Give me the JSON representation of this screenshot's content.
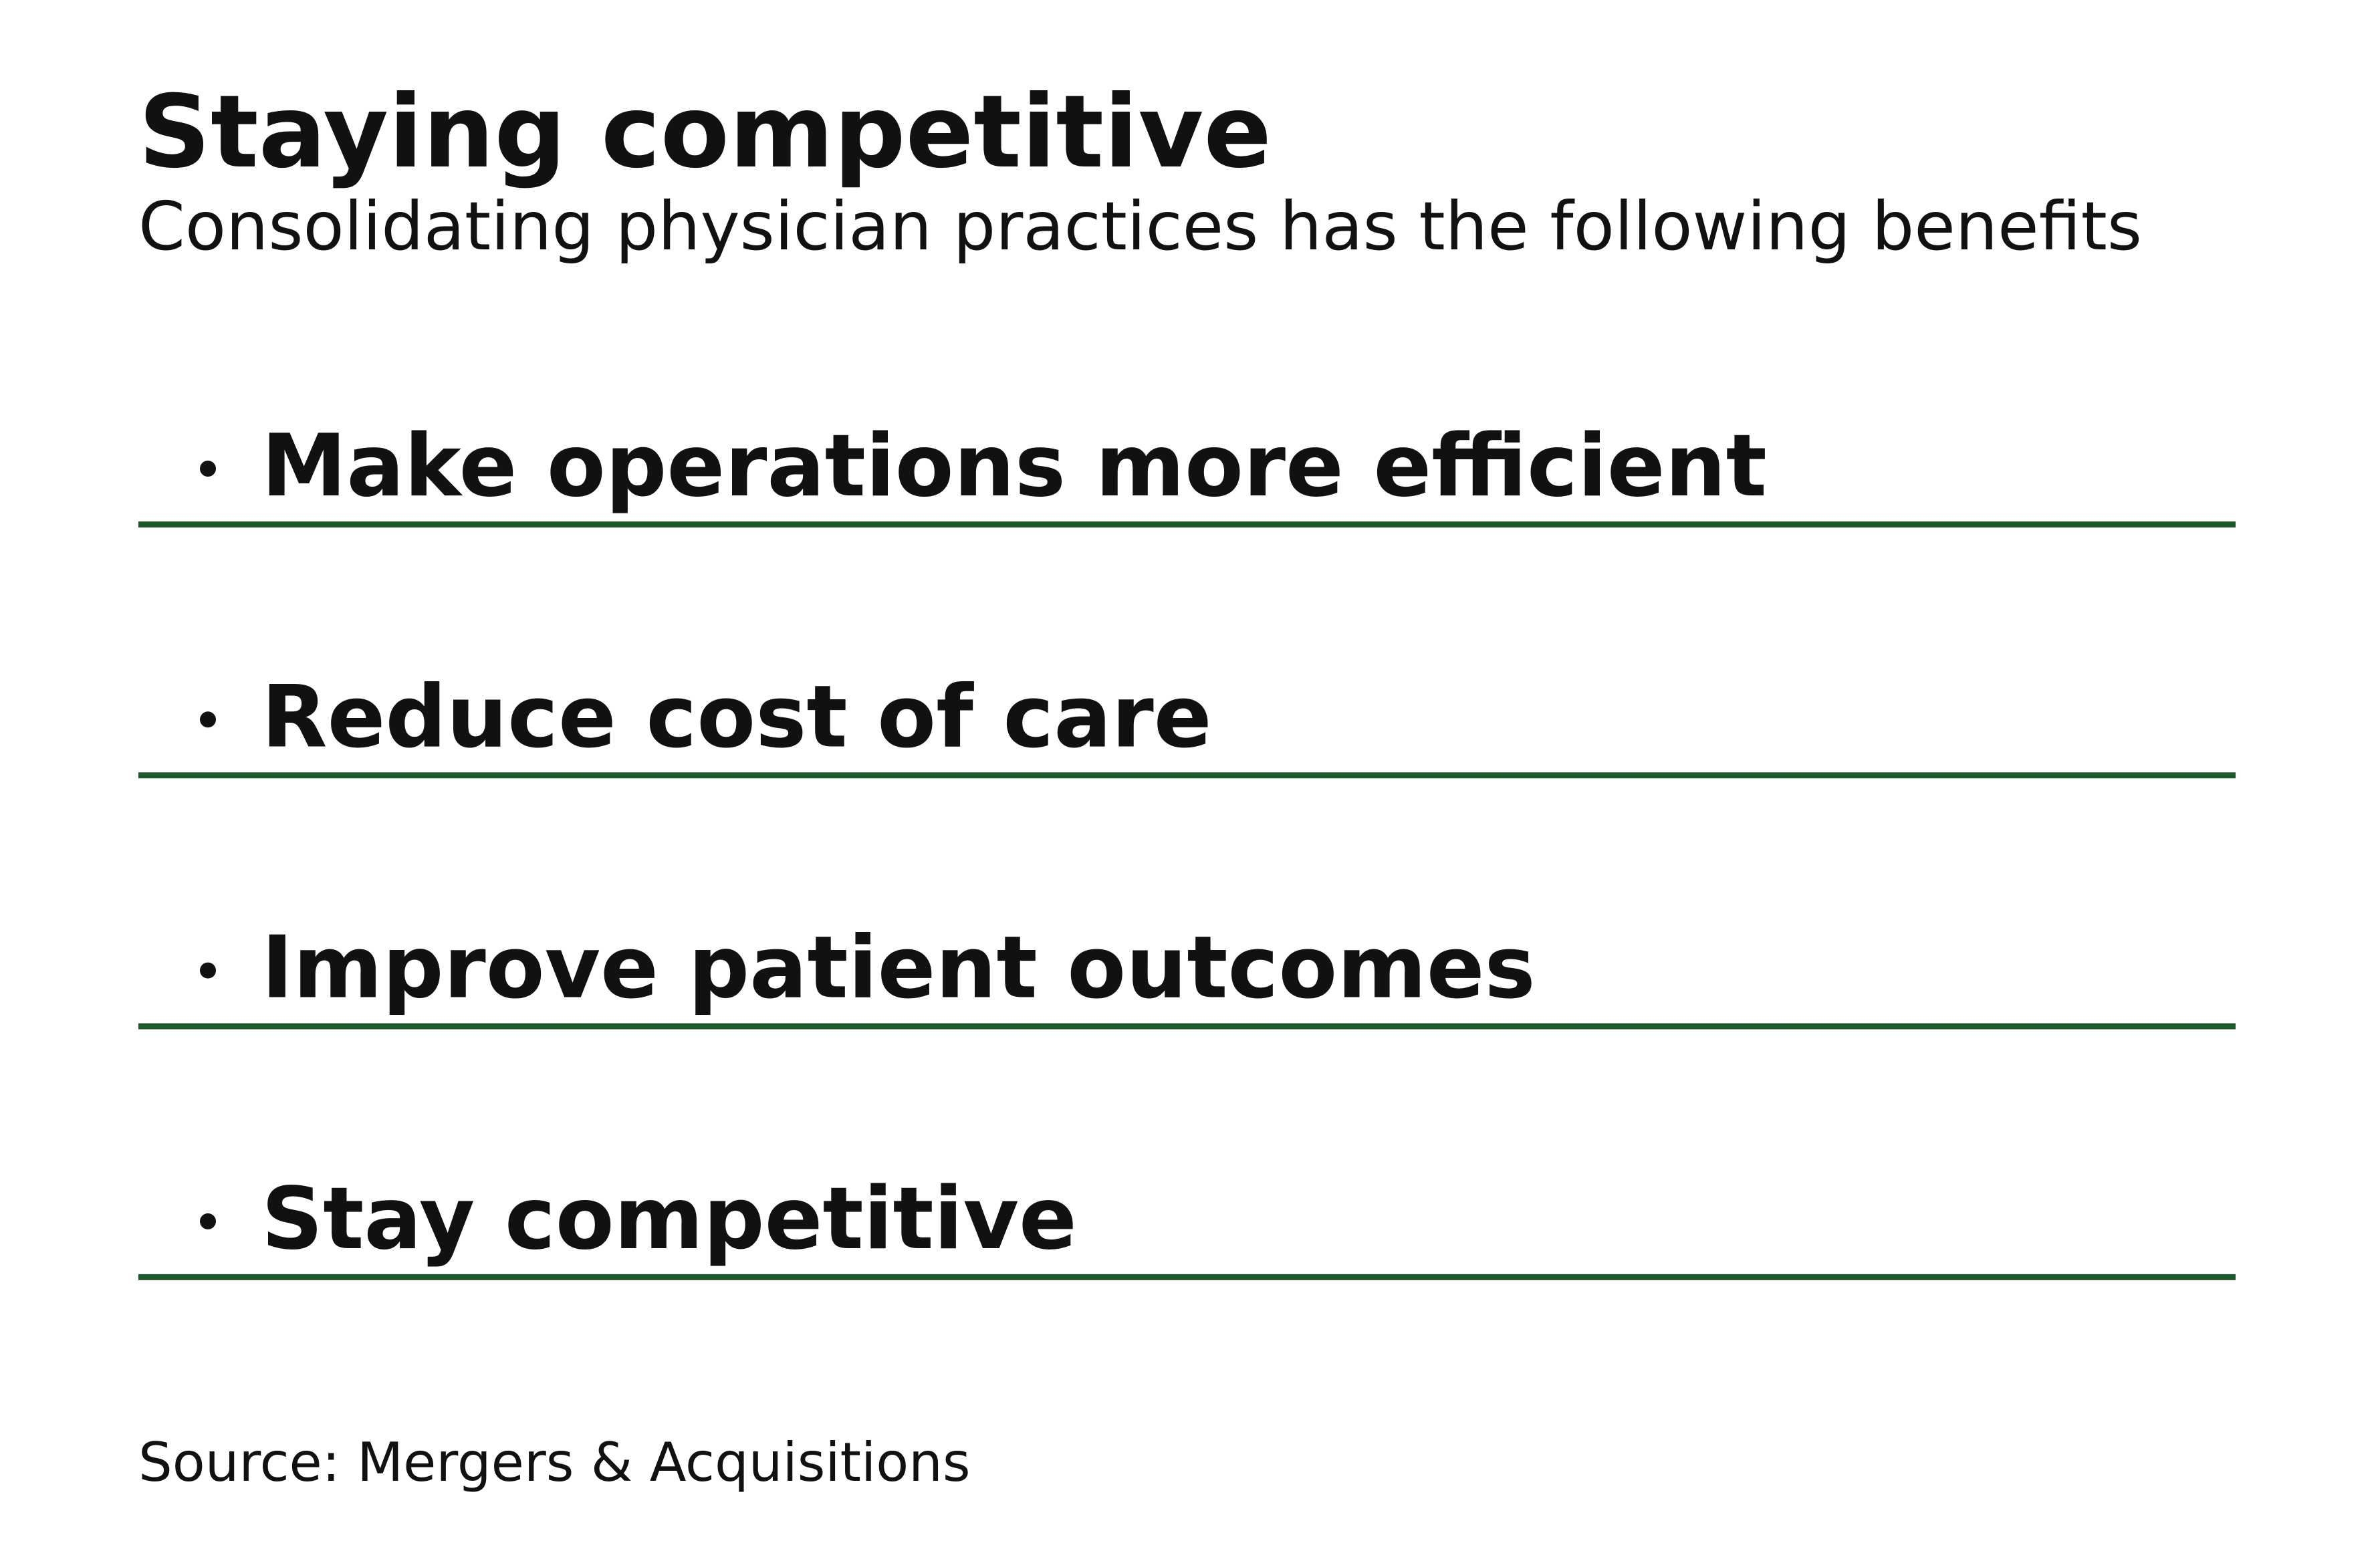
{
  "header": {
    "title": "Staying competitive",
    "subtitle": "Consolidating physician practices has the following benefits"
  },
  "items": [
    "Make operations more efficient",
    "Reduce cost of care",
    "Improve patient outcomes",
    "Stay competitive"
  ],
  "source": "Source: Mergers & Acquisitions"
}
